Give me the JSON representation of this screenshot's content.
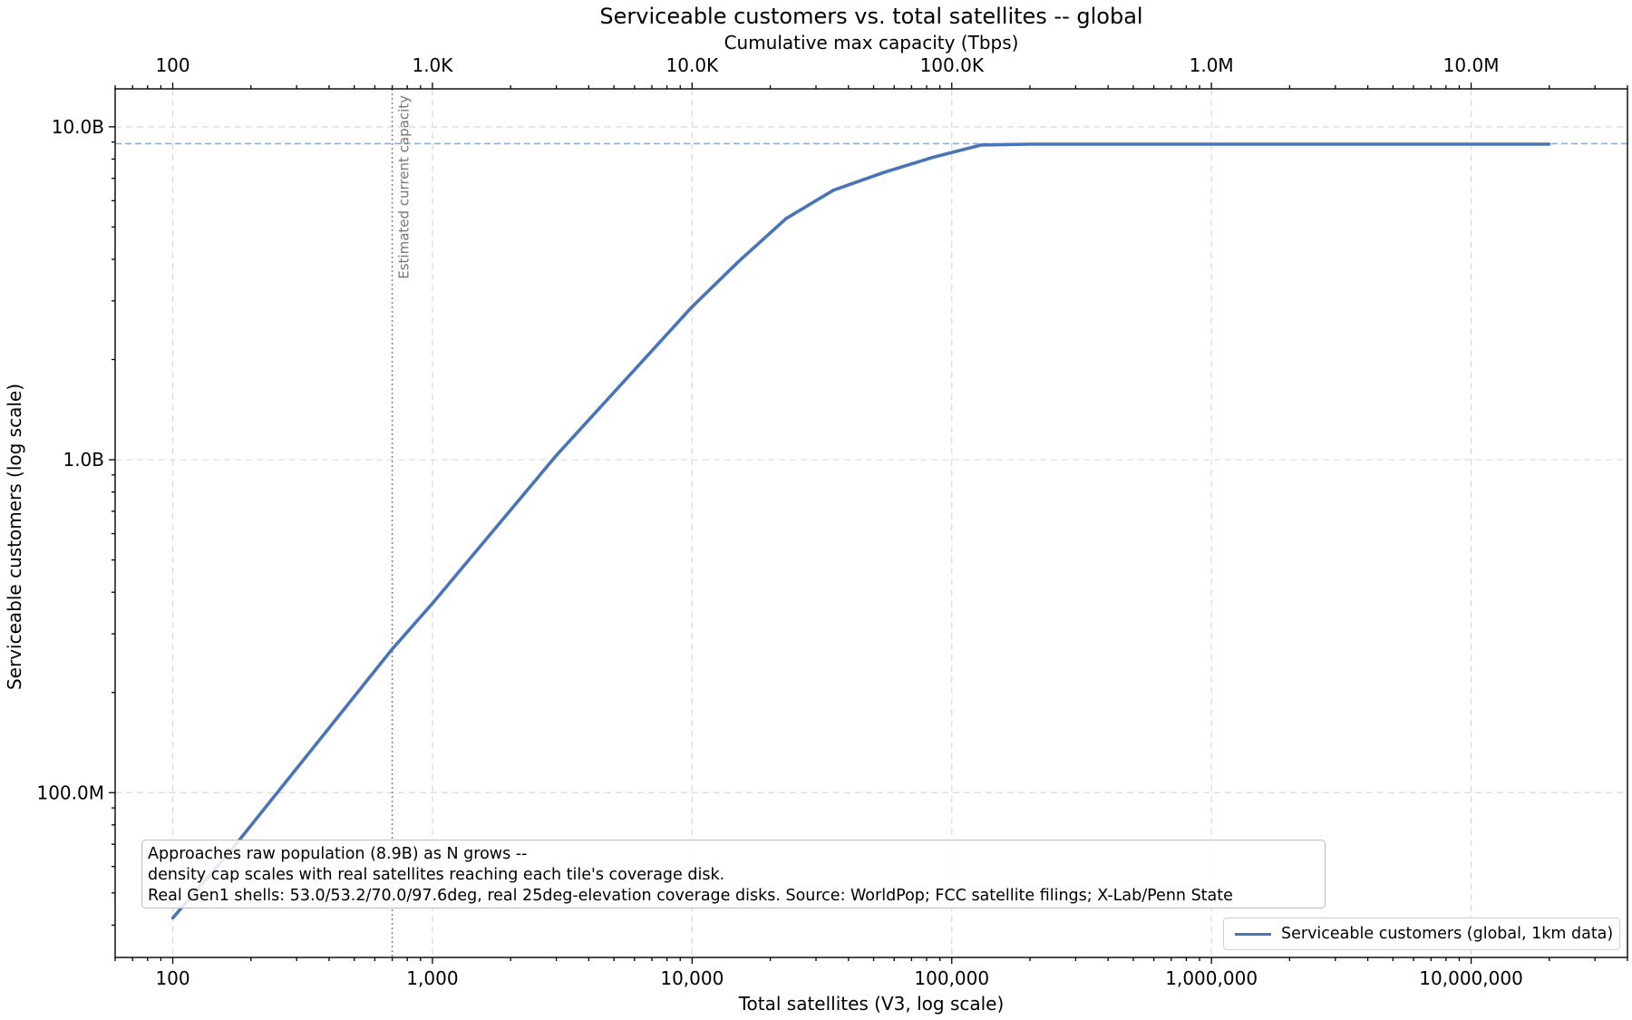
{
  "chart_data": {
    "type": "line",
    "title": "Serviceable customers vs. total satellites -- global",
    "xlabel": "Total satellites (V3, log scale)",
    "ylabel": "Serviceable customers (log scale)",
    "secondary_xlabel": "Cumulative max capacity (Tbps)",
    "x_scale": "log",
    "y_scale": "log",
    "xlim": [
      60,
      40000000
    ],
    "ylim": [
      32000000,
      13000000000
    ],
    "grid": true,
    "x_ticks": [
      100,
      1000,
      10000,
      100000,
      1000000,
      10000000
    ],
    "x_tick_labels": [
      "100",
      "1,000",
      "10,000",
      "100,000",
      "1,000,000",
      "10,000,000"
    ],
    "top_ticks": [
      100,
      1000,
      10000,
      100000,
      1000000,
      10000000
    ],
    "top_tick_labels": [
      "100",
      "1.0K",
      "10.0K",
      "100.0K",
      "1.0M",
      "10.0M"
    ],
    "top_axis_xlim": [
      60,
      40000000
    ],
    "y_ticks": [
      100000000,
      1000000000,
      10000000000
    ],
    "y_tick_labels": [
      "100.0M",
      "1.0B",
      "10.0B"
    ],
    "series": [
      {
        "name": "Serviceable customers (global, 1km data)",
        "color": "#4a74b4",
        "x": [
          100,
          170,
          700,
          1000,
          3000,
          10000,
          15000,
          23000,
          35000,
          55000,
          85000,
          130000,
          200000,
          1000000,
          20000000
        ],
        "y": [
          42000000,
          68000000,
          270000000,
          370000000,
          1030000000,
          2880000000,
          3920000000,
          5300000000,
          6450000000,
          7300000000,
          8100000000,
          8820000000,
          8870000000,
          8870000000,
          8870000000
        ]
      }
    ],
    "reference_lines": {
      "horizontal": {
        "y": 8900000000,
        "style": "dashed",
        "color": "#8fafd6"
      },
      "vertical": {
        "x": 700,
        "style": "dotted",
        "color": "#888888",
        "label": "Estimated current capacity"
      }
    },
    "annotation": {
      "lines": [
        "Approaches raw population (8.9B) as N grows --",
        "density cap scales with real satellites reaching each tile's coverage disk.",
        "Real Gen1 shells: 53.0/53.2/70.0/97.6deg, real 25deg-elevation coverage disks. Source: WorldPop; FCC satellite filings; X-Lab/Penn State"
      ],
      "placement": "lower-left"
    },
    "legend": {
      "placement": "lower-right",
      "entries": [
        "Serviceable customers (global, 1km data)"
      ]
    }
  }
}
